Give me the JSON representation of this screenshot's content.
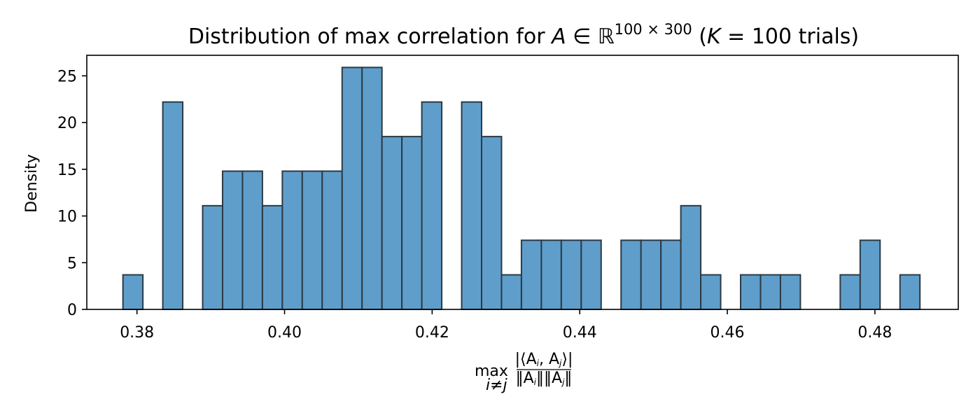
{
  "chart_data": {
    "type": "bar",
    "title": "Distribution of max correlation for A ∈ ℝ100 × 300 (K = 100 trials)",
    "title_parts": {
      "prefix": "Distribution of max correlation for ",
      "var_A": "A",
      "in_symbol": " ∈ ",
      "real_symbol": "ℝ",
      "dims": "100 × 300",
      "open_paren": " (",
      "var_K": "K",
      "trials": " = 100 trials)"
    },
    "xlabel": "max_{i≠j} |⟨A_i, A_j⟩| / (‖A_i‖‖A_j‖)",
    "xlabel_parts": {
      "max": "max",
      "subscript": "i≠j",
      "numerator": "|⟨A",
      "numerator_i": "i",
      "numerator_mid": ", A",
      "numerator_j": "j",
      "numerator_end": "⟩|",
      "denominator": "‖A",
      "den_i": "i",
      "den_mid": "‖‖A",
      "den_j": "j",
      "den_end": "‖"
    },
    "ylabel": "Density",
    "xlim": [
      0.3732,
      0.4913
    ],
    "ylim": [
      0,
      27.2
    ],
    "x_ticks": [
      0.38,
      0.4,
      0.42,
      0.44,
      0.46,
      0.48
    ],
    "x_tick_labels": [
      "0.38",
      "0.40",
      "0.42",
      "0.44",
      "0.46",
      "0.48"
    ],
    "y_ticks": [
      0,
      5,
      10,
      15,
      20,
      25
    ],
    "y_tick_labels": [
      "0",
      "5",
      "10",
      "15",
      "20",
      "25"
    ],
    "grid": false,
    "bin_width": 0.0027,
    "bin_edges_start": 0.3781,
    "densities": [
      3.7,
      0,
      22.2,
      0,
      11.1,
      14.8,
      14.8,
      11.1,
      14.8,
      14.8,
      14.8,
      25.9,
      25.9,
      18.5,
      18.5,
      22.2,
      0,
      22.2,
      18.5,
      3.7,
      7.4,
      7.4,
      7.4,
      7.4,
      0,
      7.4,
      7.4,
      7.4,
      11.1,
      3.7,
      0,
      3.7,
      3.7,
      3.7,
      0,
      0,
      3.7,
      7.4,
      0,
      3.7
    ],
    "colors": {
      "bar_fill": "#5f9ecb",
      "bar_edge": "#2b3a45",
      "axis": "#000000"
    }
  }
}
